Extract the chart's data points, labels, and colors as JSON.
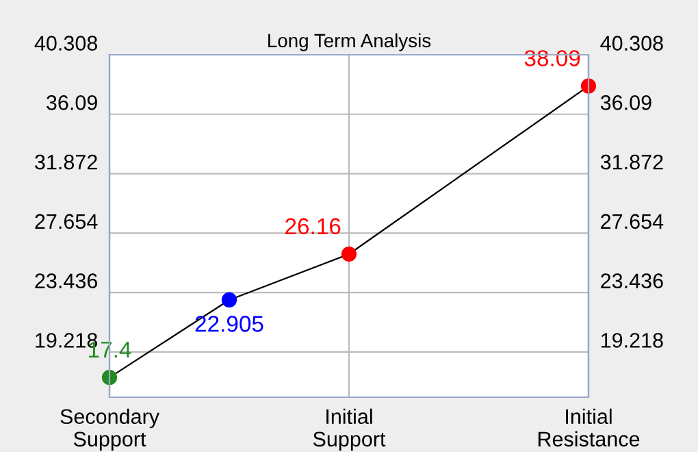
{
  "chart_data": {
    "type": "line",
    "title": "Long Term Analysis",
    "categories": [
      "Secondary\nSupport",
      null,
      "Initial\nSupport",
      null,
      "Initial\nResistance"
    ],
    "series": [
      {
        "color": "#000000",
        "colors": [
          "#228b22",
          "#0000ff",
          "#ff0000",
          null,
          "#ff0000"
        ],
        "values": [
          17.4,
          22.905,
          26.16,
          null,
          38.09
        ]
      }
    ],
    "ylim": [
      16,
      40.308
    ],
    "yticks": [
      19.218,
      23.436,
      27.654,
      31.872,
      36.09,
      40.308
    ],
    "y2lim": [
      16,
      40.308
    ],
    "y2ticks": [
      19.218,
      23.436,
      27.654,
      31.872,
      36.09,
      40.308
    ],
    "marker": "circle",
    "grid": true,
    "data_labels": true
  }
}
